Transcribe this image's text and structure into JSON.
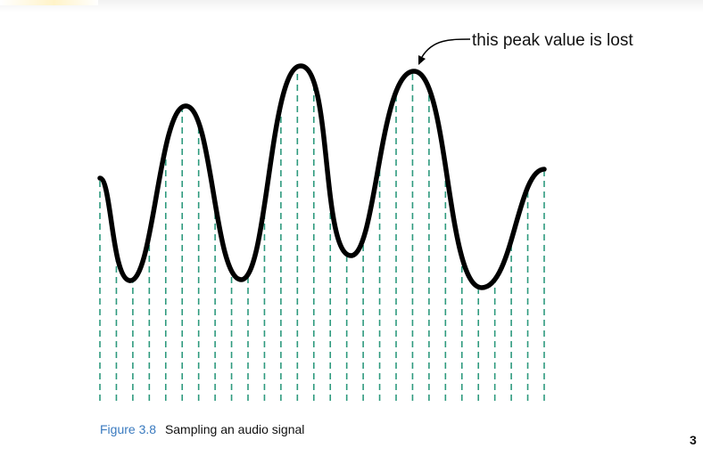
{
  "figure": {
    "annotation": "this peak value is lost",
    "caption_label": "Figure 3.8",
    "caption_text": "Sampling an audio signal",
    "sample_count": 28,
    "colors": {
      "signal": "#000000",
      "sample_lines": "#2e9a7e",
      "caption_label": "#3a7abf"
    }
  },
  "page": {
    "number": "3"
  }
}
